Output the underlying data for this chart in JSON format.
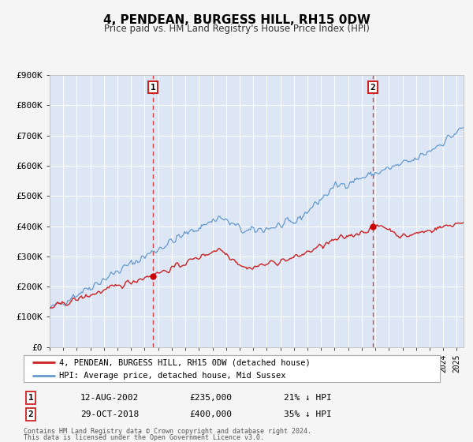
{
  "title": "4, PENDEAN, BURGESS HILL, RH15 0DW",
  "subtitle": "Price paid vs. HM Land Registry's House Price Index (HPI)",
  "bg_color": "#f0f4ff",
  "plot_bg_color": "#dce6f5",
  "grid_color": "#ffffff",
  "hpi_color": "#6699cc",
  "price_color": "#cc2222",
  "marker_color": "#cc0000",
  "ylim": [
    0,
    900000
  ],
  "yticks": [
    0,
    100000,
    200000,
    300000,
    400000,
    500000,
    600000,
    700000,
    800000,
    900000
  ],
  "ytick_labels": [
    "£0",
    "£100K",
    "£200K",
    "£300K",
    "£400K",
    "£500K",
    "£600K",
    "£700K",
    "£800K",
    "£900K"
  ],
  "sale1_year": 2002.62,
  "sale1_price": 235000,
  "sale1_label": "12-AUG-2002",
  "sale1_hpi_pct": "21% ↓ HPI",
  "sale2_year": 2018.83,
  "sale2_price": 400000,
  "sale2_label": "29-OCT-2018",
  "sale2_hpi_pct": "35% ↓ HPI",
  "legend_line1": "4, PENDEAN, BURGESS HILL, RH15 0DW (detached house)",
  "legend_line2": "HPI: Average price, detached house, Mid Sussex",
  "footer1": "Contains HM Land Registry data © Crown copyright and database right 2024.",
  "footer2": "This data is licensed under the Open Government Licence v3.0.",
  "xstart": 1995.0,
  "xend": 2025.5
}
